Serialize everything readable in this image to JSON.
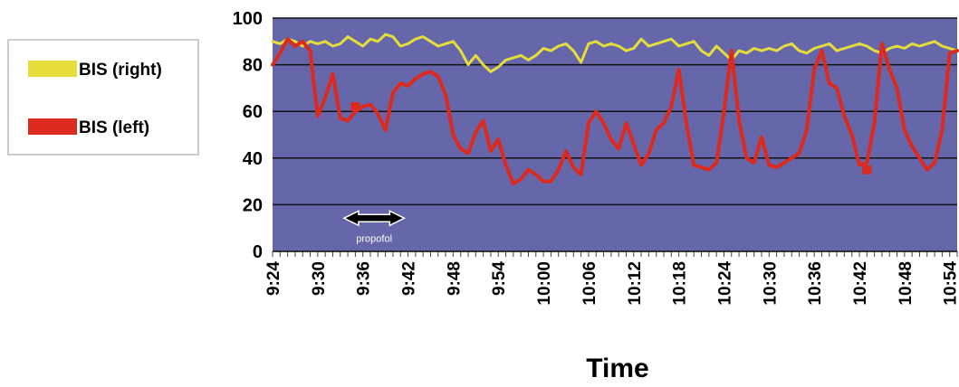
{
  "chart_data": {
    "type": "line",
    "xlabel": "Time",
    "ylabel": "",
    "ylim": [
      0,
      100
    ],
    "yticks": [
      0,
      20,
      40,
      60,
      80,
      100
    ],
    "x_tick_labels": [
      "9:24",
      "9:30",
      "9:36",
      "9:42",
      "9:48",
      "9:54",
      "10:00",
      "10:06",
      "10:12",
      "10:18",
      "10:24",
      "10:30",
      "10:36",
      "10:42",
      "10:48",
      "10:54"
    ],
    "x_range_minutes": [
      0,
      91
    ],
    "grid": true,
    "legend_position": "left",
    "plot_background": "#6666aa",
    "series": [
      {
        "name": "BIS (right)",
        "color": "#e6dd3a",
        "x": [
          0,
          1,
          2,
          3,
          4,
          5,
          6,
          7,
          8,
          9,
          10,
          11,
          12,
          13,
          14,
          15,
          16,
          17,
          18,
          19,
          20,
          21,
          22,
          23,
          24,
          25,
          26,
          27,
          28,
          29,
          30,
          31,
          32,
          33,
          34,
          35,
          36,
          37,
          38,
          39,
          40,
          41,
          42,
          43,
          44,
          45,
          46,
          47,
          48,
          49,
          50,
          51,
          52,
          53,
          54,
          55,
          56,
          57,
          58,
          59,
          60,
          61,
          62,
          63,
          64,
          65,
          66,
          67,
          68,
          69,
          70,
          71,
          72,
          73,
          74,
          75,
          76,
          77,
          78,
          79,
          80,
          81,
          82,
          83,
          84,
          85,
          86,
          87,
          88,
          89,
          90,
          91
        ],
        "values": [
          90,
          89,
          91,
          90,
          88,
          90,
          89,
          90,
          88,
          89,
          92,
          90,
          88,
          91,
          90,
          93,
          92,
          88,
          89,
          91,
          92,
          90,
          88,
          89,
          90,
          86,
          80,
          84,
          80,
          77,
          79,
          82,
          83,
          84,
          82,
          84,
          87,
          86,
          88,
          89,
          86,
          81,
          89,
          90,
          88,
          89,
          88,
          86,
          87,
          91,
          88,
          89,
          90,
          91,
          88,
          89,
          90,
          86,
          84,
          88,
          85,
          82,
          86,
          85,
          87,
          86,
          87,
          86,
          88,
          89,
          86,
          85,
          87,
          88,
          89,
          86,
          87,
          88,
          89,
          88,
          86,
          85,
          87,
          88,
          87,
          89,
          88,
          89,
          90,
          88,
          87,
          86
        ]
      },
      {
        "name": "BIS (left)",
        "color": "#dd2a1e",
        "x": [
          0,
          1,
          2,
          3,
          4,
          5,
          6,
          7,
          8,
          9,
          10,
          11,
          12,
          13,
          14,
          15,
          16,
          17,
          18,
          19,
          20,
          21,
          22,
          23,
          24,
          25,
          26,
          27,
          28,
          29,
          30,
          31,
          32,
          33,
          34,
          35,
          36,
          37,
          38,
          39,
          40,
          41,
          42,
          43,
          44,
          45,
          46,
          47,
          48,
          49,
          50,
          51,
          52,
          53,
          54,
          55,
          56,
          57,
          58,
          59,
          60,
          61,
          62,
          63,
          64,
          65,
          66,
          67,
          68,
          69,
          70,
          71,
          72,
          73,
          74,
          75,
          76,
          77,
          78,
          79,
          80,
          81,
          82,
          83,
          84,
          85,
          86,
          87,
          88,
          89,
          90,
          91
        ],
        "values": [
          80,
          85,
          91,
          88,
          90,
          86,
          58,
          66,
          76,
          57,
          56,
          60,
          62,
          63,
          59,
          52,
          68,
          72,
          71,
          74,
          76,
          77,
          75,
          67,
          50,
          44,
          42,
          51,
          56,
          43,
          48,
          37,
          29,
          31,
          35,
          33,
          30,
          30,
          35,
          43,
          36,
          33,
          55,
          60,
          55,
          48,
          44,
          55,
          46,
          37,
          42,
          52,
          55,
          62,
          78,
          55,
          37,
          36,
          35,
          38,
          60,
          86,
          56,
          40,
          38,
          49,
          37,
          36,
          38,
          40,
          42,
          52,
          78,
          86,
          72,
          70,
          58,
          50,
          37,
          38,
          55,
          89,
          78,
          70,
          52,
          45,
          40,
          35,
          38,
          52,
          85,
          86
        ]
      }
    ],
    "annotations": [
      {
        "text": "propofol",
        "x_start": 9.5,
        "x_end": 17.5,
        "y": 15
      }
    ]
  }
}
